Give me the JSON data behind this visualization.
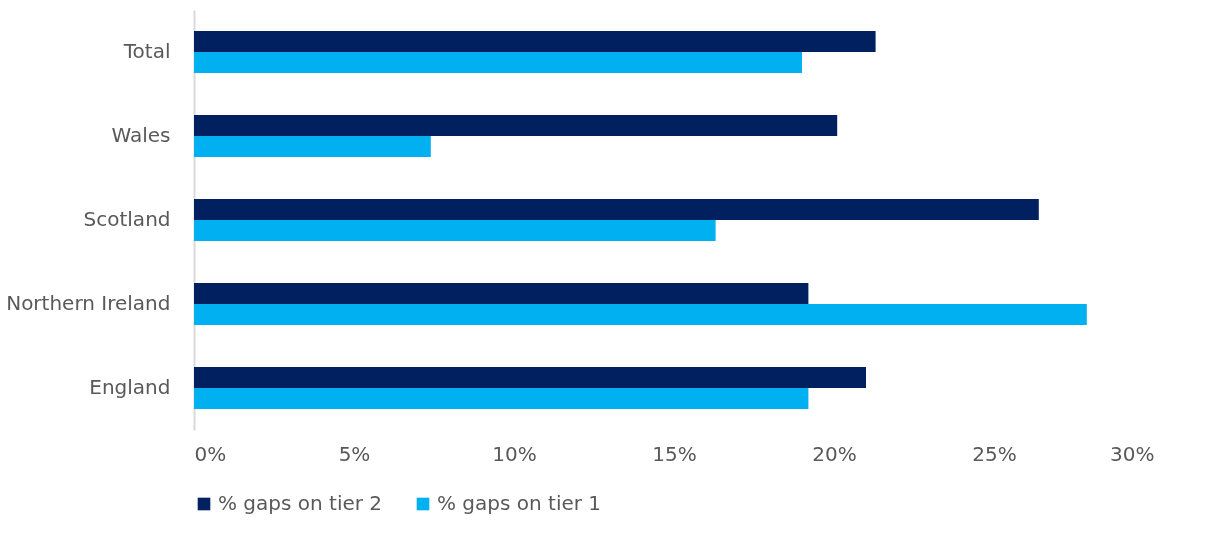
{
  "chart_data": {
    "type": "bar",
    "orientation": "horizontal",
    "categories": [
      "Total",
      "Wales",
      "Scotland",
      "Northern Ireland",
      "England"
    ],
    "series": [
      {
        "name": "% gaps on tier 2",
        "color": "#002060",
        "values": [
          21.3,
          20.1,
          26.4,
          19.2,
          21.0
        ]
      },
      {
        "name": "% gaps on tier 1",
        "color": "#00b0f0",
        "values": [
          19.0,
          7.4,
          16.3,
          27.9,
          19.2
        ]
      }
    ],
    "xlim": [
      0,
      30
    ],
    "xticks": [
      {
        "value": 0,
        "label": "0%"
      },
      {
        "value": 5,
        "label": "5%"
      },
      {
        "value": 10,
        "label": "10%"
      },
      {
        "value": 15,
        "label": "15%"
      },
      {
        "value": 20,
        "label": "20%"
      },
      {
        "value": 25,
        "label": "25%"
      },
      {
        "value": 30,
        "label": "30%"
      }
    ],
    "grid": false,
    "legend": "bottom"
  }
}
